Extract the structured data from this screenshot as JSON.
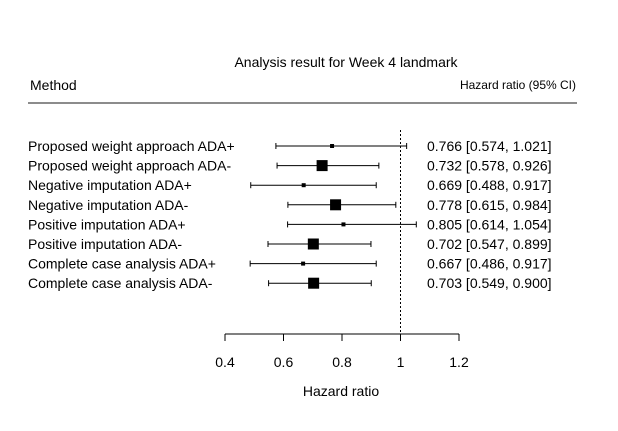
{
  "chart_data": {
    "type": "forest",
    "title": "Analysis result for Week 4 landmark",
    "column_header_left": "Method",
    "column_header_right": "Hazard ratio (95% CI)",
    "xlabel": "Hazard ratio",
    "xlim": [
      0.4,
      1.2
    ],
    "xticks": [
      "0.4",
      "0.6",
      "0.8",
      "1",
      "1.2"
    ],
    "reference_line": 1,
    "rows": [
      {
        "label": "Proposed weight approach ADA+",
        "hr": 0.766,
        "lower": 0.574,
        "upper": 1.021,
        "text": "0.766 [0.574, 1.021]",
        "marker": "small"
      },
      {
        "label": "Proposed weight approach ADA-",
        "hr": 0.732,
        "lower": 0.578,
        "upper": 0.926,
        "text": "0.732 [0.578, 0.926]",
        "marker": "large"
      },
      {
        "label": "Negative imputation ADA+",
        "hr": 0.669,
        "lower": 0.488,
        "upper": 0.917,
        "text": "0.669 [0.488, 0.917]",
        "marker": "small"
      },
      {
        "label": "Negative imputation ADA-",
        "hr": 0.778,
        "lower": 0.615,
        "upper": 0.984,
        "text": "0.778 [0.615, 0.984]",
        "marker": "large"
      },
      {
        "label": "Positive imputation ADA+",
        "hr": 0.805,
        "lower": 0.614,
        "upper": 1.054,
        "text": "0.805 [0.614, 1.054]",
        "marker": "small"
      },
      {
        "label": "Positive imputation ADA-",
        "hr": 0.702,
        "lower": 0.547,
        "upper": 0.899,
        "text": "0.702 [0.547, 0.899]",
        "marker": "large"
      },
      {
        "label": "Complete case analysis ADA+",
        "hr": 0.667,
        "lower": 0.486,
        "upper": 0.917,
        "text": "0.667 [0.486, 0.917]",
        "marker": "small"
      },
      {
        "label": "Complete case analysis ADA-",
        "hr": 0.703,
        "lower": 0.549,
        "upper": 0.9,
        "text": "0.703 [0.549, 0.900]",
        "marker": "large"
      }
    ]
  }
}
